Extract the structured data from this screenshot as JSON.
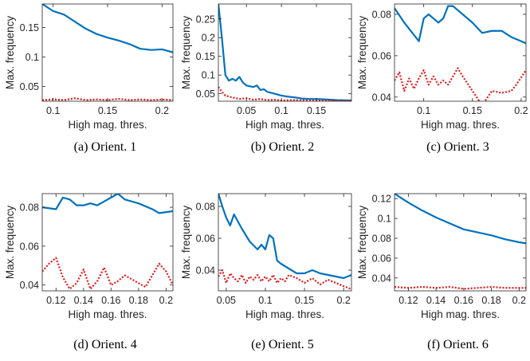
{
  "colors": {
    "series_blue": "#0072BD",
    "series_red": "#E31A1C",
    "axis": "#262626"
  },
  "chart_data": [
    {
      "type": "line",
      "caption": "(a) Orient. 1",
      "xlabel": "High mag. thres.",
      "ylabel": "Max. frequency",
      "xlim": [
        0.09,
        0.21
      ],
      "ylim": [
        0.025,
        0.19
      ],
      "xticks": [
        0.1,
        0.15,
        0.2
      ],
      "xtick_labels": [
        "0.1",
        "0.15",
        "0.2"
      ],
      "yticks": [
        0.05,
        0.1,
        0.15
      ],
      "ytick_labels": [
        "0.05",
        "0.1",
        "0.15"
      ],
      "series": [
        {
          "style": "solid",
          "color": "#0072BD",
          "x": [
            0.09,
            0.1,
            0.11,
            0.115,
            0.12,
            0.13,
            0.14,
            0.15,
            0.16,
            0.17,
            0.18,
            0.19,
            0.2,
            0.21
          ],
          "y": [
            0.19,
            0.178,
            0.172,
            0.166,
            0.16,
            0.148,
            0.139,
            0.133,
            0.128,
            0.122,
            0.114,
            0.112,
            0.113,
            0.108
          ]
        },
        {
          "style": "dotted",
          "color": "#E31A1C",
          "x": [
            0.09,
            0.1,
            0.11,
            0.12,
            0.13,
            0.14,
            0.15,
            0.16,
            0.17,
            0.18,
            0.19,
            0.2,
            0.21
          ],
          "y": [
            0.027,
            0.028,
            0.027,
            0.03,
            0.027,
            0.028,
            0.027,
            0.029,
            0.027,
            0.028,
            0.027,
            0.028,
            0.027
          ]
        }
      ]
    },
    {
      "type": "line",
      "caption": "(b) Orient. 2",
      "xlabel": "High mag. thres.",
      "ylabel": "Max. frequency",
      "xlim": [
        0.01,
        0.2
      ],
      "ylim": [
        0.03,
        0.29
      ],
      "xticks": [
        0.05,
        0.1,
        0.15
      ],
      "xtick_labels": [
        "0.05",
        "0.1",
        "0.15"
      ],
      "yticks": [
        0.05,
        0.1,
        0.15,
        0.2,
        0.25
      ],
      "ytick_labels": [
        "0.05",
        "0.1",
        "0.15",
        "0.2",
        "0.25"
      ],
      "series": [
        {
          "style": "solid",
          "color": "#0072BD",
          "x": [
            0.01,
            0.015,
            0.02,
            0.025,
            0.03,
            0.035,
            0.04,
            0.045,
            0.05,
            0.06,
            0.065,
            0.07,
            0.075,
            0.08,
            0.09,
            0.1,
            0.11,
            0.12,
            0.13,
            0.14,
            0.15,
            0.16,
            0.17,
            0.18,
            0.2
          ],
          "y": [
            0.29,
            0.2,
            0.1,
            0.085,
            0.09,
            0.085,
            0.095,
            0.08,
            0.072,
            0.068,
            0.072,
            0.06,
            0.062,
            0.055,
            0.05,
            0.045,
            0.042,
            0.04,
            0.037,
            0.036,
            0.036,
            0.035,
            0.034,
            0.033,
            0.032
          ]
        },
        {
          "style": "dotted",
          "color": "#E31A1C",
          "x": [
            0.01,
            0.015,
            0.02,
            0.03,
            0.04,
            0.05,
            0.06,
            0.07,
            0.08,
            0.09,
            0.1,
            0.12,
            0.14,
            0.16,
            0.18,
            0.2
          ],
          "y": [
            0.068,
            0.055,
            0.045,
            0.04,
            0.036,
            0.038,
            0.034,
            0.036,
            0.033,
            0.034,
            0.032,
            0.033,
            0.032,
            0.032,
            0.031,
            0.031
          ]
        }
      ]
    },
    {
      "type": "line",
      "caption": "(c) Orient. 3",
      "xlabel": "High mag. thres.",
      "ylabel": "Max. frequency",
      "xlim": [
        0.07,
        0.205
      ],
      "ylim": [
        0.038,
        0.085
      ],
      "xticks": [
        0.1,
        0.15,
        0.2
      ],
      "xtick_labels": [
        "0.1",
        "0.15",
        "0.2"
      ],
      "yticks": [
        0.04,
        0.06,
        0.08
      ],
      "ytick_labels": [
        "0.04",
        "0.06",
        "0.08"
      ],
      "series": [
        {
          "style": "solid",
          "color": "#0072BD",
          "x": [
            0.07,
            0.08,
            0.09,
            0.095,
            0.1,
            0.105,
            0.11,
            0.115,
            0.12,
            0.125,
            0.13,
            0.135,
            0.14,
            0.15,
            0.16,
            0.17,
            0.18,
            0.19,
            0.205
          ],
          "y": [
            0.083,
            0.076,
            0.07,
            0.067,
            0.078,
            0.08,
            0.078,
            0.076,
            0.078,
            0.084,
            0.084,
            0.082,
            0.08,
            0.076,
            0.071,
            0.072,
            0.072,
            0.069,
            0.066
          ]
        },
        {
          "style": "dotted",
          "color": "#E31A1C",
          "x": [
            0.07,
            0.075,
            0.08,
            0.085,
            0.09,
            0.095,
            0.1,
            0.105,
            0.11,
            0.115,
            0.12,
            0.125,
            0.13,
            0.135,
            0.14,
            0.15,
            0.16,
            0.17,
            0.18,
            0.19,
            0.195,
            0.205
          ],
          "y": [
            0.048,
            0.052,
            0.043,
            0.049,
            0.044,
            0.049,
            0.053,
            0.046,
            0.05,
            0.046,
            0.048,
            0.046,
            0.05,
            0.054,
            0.05,
            0.043,
            0.036,
            0.043,
            0.042,
            0.043,
            0.046,
            0.053
          ]
        }
      ]
    },
    {
      "type": "line",
      "caption": "(d) Orient. 4",
      "xlabel": "High mag. thres.",
      "ylabel": "Max. frequency",
      "xlim": [
        0.11,
        0.205
      ],
      "ylim": [
        0.037,
        0.087
      ],
      "xticks": [
        0.12,
        0.14,
        0.16,
        0.18,
        0.2
      ],
      "xtick_labels": [
        "0.12",
        "0.14",
        "0.16",
        "0.18",
        "0.2"
      ],
      "yticks": [
        0.04,
        0.06,
        0.08
      ],
      "ytick_labels": [
        "0.04",
        "0.06",
        "0.08"
      ],
      "series": [
        {
          "style": "solid",
          "color": "#0072BD",
          "x": [
            0.11,
            0.12,
            0.125,
            0.13,
            0.135,
            0.14,
            0.145,
            0.15,
            0.16,
            0.165,
            0.17,
            0.18,
            0.19,
            0.195,
            0.205
          ],
          "y": [
            0.08,
            0.079,
            0.085,
            0.084,
            0.081,
            0.081,
            0.082,
            0.081,
            0.085,
            0.087,
            0.084,
            0.082,
            0.079,
            0.077,
            0.078
          ]
        },
        {
          "style": "dotted",
          "color": "#E31A1C",
          "x": [
            0.11,
            0.115,
            0.12,
            0.125,
            0.13,
            0.135,
            0.14,
            0.145,
            0.15,
            0.155,
            0.16,
            0.165,
            0.17,
            0.175,
            0.18,
            0.185,
            0.19,
            0.195,
            0.2,
            0.205
          ],
          "y": [
            0.047,
            0.051,
            0.054,
            0.044,
            0.038,
            0.041,
            0.048,
            0.038,
            0.042,
            0.049,
            0.04,
            0.042,
            0.045,
            0.043,
            0.041,
            0.039,
            0.045,
            0.051,
            0.047,
            0.04
          ]
        }
      ]
    },
    {
      "type": "line",
      "caption": "(e) Orient. 5",
      "xlabel": "High mag. thres.",
      "ylabel": "Max. frequency",
      "xlim": [
        0.04,
        0.21
      ],
      "ylim": [
        0.027,
        0.088
      ],
      "xticks": [
        0.05,
        0.1,
        0.15,
        0.2
      ],
      "xtick_labels": [
        "0.05",
        "0.1",
        "0.15",
        "0.2"
      ],
      "yticks": [
        0.04,
        0.06,
        0.08
      ],
      "ytick_labels": [
        "0.04",
        "0.06",
        "0.08"
      ],
      "series": [
        {
          "style": "solid",
          "color": "#0072BD",
          "x": [
            0.04,
            0.045,
            0.05,
            0.055,
            0.06,
            0.07,
            0.08,
            0.09,
            0.095,
            0.1,
            0.105,
            0.11,
            0.115,
            0.12,
            0.13,
            0.14,
            0.15,
            0.16,
            0.17,
            0.18,
            0.19,
            0.2,
            0.21
          ],
          "y": [
            0.088,
            0.08,
            0.073,
            0.068,
            0.075,
            0.066,
            0.058,
            0.053,
            0.056,
            0.053,
            0.062,
            0.06,
            0.046,
            0.044,
            0.041,
            0.038,
            0.038,
            0.04,
            0.038,
            0.037,
            0.036,
            0.035,
            0.037
          ]
        },
        {
          "style": "dotted",
          "color": "#E31A1C",
          "x": [
            0.04,
            0.045,
            0.05,
            0.055,
            0.06,
            0.065,
            0.07,
            0.075,
            0.08,
            0.085,
            0.09,
            0.095,
            0.1,
            0.105,
            0.11,
            0.115,
            0.12,
            0.125,
            0.13,
            0.14,
            0.15,
            0.16,
            0.17,
            0.18,
            0.19,
            0.2,
            0.21
          ],
          "y": [
            0.036,
            0.04,
            0.032,
            0.038,
            0.035,
            0.033,
            0.037,
            0.032,
            0.036,
            0.034,
            0.037,
            0.033,
            0.036,
            0.033,
            0.037,
            0.032,
            0.035,
            0.033,
            0.037,
            0.035,
            0.032,
            0.035,
            0.031,
            0.034,
            0.032,
            0.03,
            0.028
          ]
        }
      ]
    },
    {
      "type": "line",
      "caption": "(f) Orient. 6",
      "xlabel": "High mag. thres.",
      "ylabel": "Max. frequency",
      "xlim": [
        0.11,
        0.205
      ],
      "ylim": [
        0.027,
        0.125
      ],
      "xticks": [
        0.12,
        0.14,
        0.16,
        0.18,
        0.2
      ],
      "xtick_labels": [
        "0.12",
        "0.14",
        "0.16",
        "0.18",
        "0.2"
      ],
      "yticks": [
        0.04,
        0.06,
        0.08,
        0.1,
        0.12
      ],
      "ytick_labels": [
        "0.04",
        "0.06",
        "0.08",
        "0.1",
        "0.12"
      ],
      "series": [
        {
          "style": "solid",
          "color": "#0072BD",
          "x": [
            0.11,
            0.12,
            0.13,
            0.14,
            0.15,
            0.16,
            0.17,
            0.18,
            0.19,
            0.2,
            0.205
          ],
          "y": [
            0.125,
            0.116,
            0.108,
            0.101,
            0.095,
            0.089,
            0.086,
            0.083,
            0.079,
            0.076,
            0.075
          ]
        },
        {
          "style": "dotted",
          "color": "#E31A1C",
          "x": [
            0.11,
            0.12,
            0.13,
            0.14,
            0.15,
            0.16,
            0.17,
            0.18,
            0.19,
            0.2,
            0.205
          ],
          "y": [
            0.031,
            0.03,
            0.031,
            0.03,
            0.031,
            0.029,
            0.03,
            0.031,
            0.03,
            0.03,
            0.03
          ]
        }
      ]
    }
  ]
}
